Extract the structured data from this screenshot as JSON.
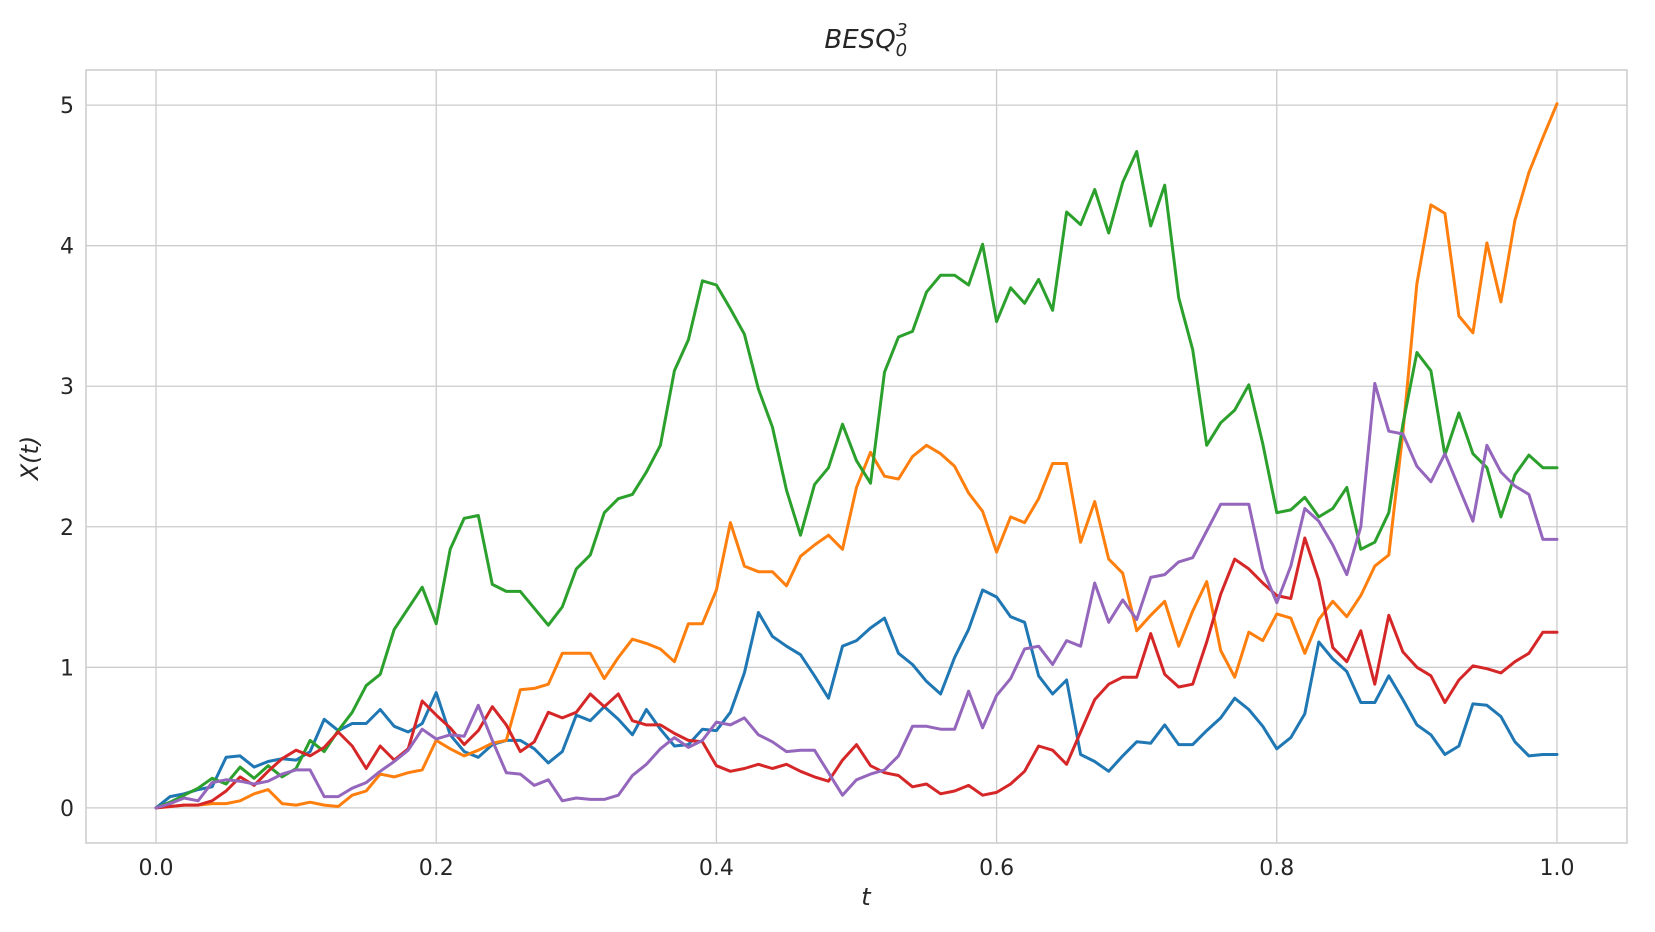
{
  "chart_data": {
    "type": "line",
    "title": "BESQ",
    "title_subscript": "0",
    "title_superscript": "3",
    "xlabel": "t",
    "ylabel": "X(t)",
    "xlim": [
      -0.05,
      1.05
    ],
    "ylim": [
      -0.25,
      5.25
    ],
    "xticks": [
      0.0,
      0.2,
      0.4,
      0.6,
      0.8,
      1.0
    ],
    "xtick_labels": [
      "0.0",
      "0.2",
      "0.4",
      "0.6",
      "0.8",
      "1.0"
    ],
    "yticks": [
      0,
      1,
      2,
      3,
      4,
      5
    ],
    "ytick_labels": [
      "0",
      "1",
      "2",
      "3",
      "4",
      "5"
    ],
    "grid": true,
    "legend": "none",
    "x": [
      0.0,
      0.01,
      0.02,
      0.03,
      0.04,
      0.05,
      0.06,
      0.07,
      0.08,
      0.09,
      0.1,
      0.11,
      0.12,
      0.13,
      0.14,
      0.15,
      0.16,
      0.17,
      0.18,
      0.19,
      0.2,
      0.21,
      0.22,
      0.23,
      0.24,
      0.25,
      0.26,
      0.27,
      0.28,
      0.29,
      0.3,
      0.31,
      0.32,
      0.33,
      0.34,
      0.35,
      0.36,
      0.37,
      0.38,
      0.39,
      0.4,
      0.41,
      0.42,
      0.43,
      0.44,
      0.45,
      0.46,
      0.47,
      0.48,
      0.49,
      0.5,
      0.51,
      0.52,
      0.53,
      0.54,
      0.55,
      0.56,
      0.57,
      0.58,
      0.59,
      0.6,
      0.61,
      0.62,
      0.63,
      0.64,
      0.65,
      0.66,
      0.67,
      0.68,
      0.69,
      0.7,
      0.71,
      0.72,
      0.73,
      0.74,
      0.75,
      0.76,
      0.77,
      0.78,
      0.79,
      0.8,
      0.81,
      0.82,
      0.83,
      0.84,
      0.85,
      0.86,
      0.87,
      0.88,
      0.89,
      0.9,
      0.91,
      0.92,
      0.93,
      0.94,
      0.95,
      0.96,
      0.97,
      0.98,
      0.99,
      1.0
    ],
    "series": [
      {
        "color": "#1f77b4",
        "values": [
          0.0,
          0.08,
          0.1,
          0.13,
          0.15,
          0.36,
          0.37,
          0.29,
          0.33,
          0.35,
          0.34,
          0.4,
          0.63,
          0.55,
          0.6,
          0.6,
          0.7,
          0.58,
          0.54,
          0.6,
          0.82,
          0.52,
          0.4,
          0.36,
          0.45,
          0.48,
          0.48,
          0.42,
          0.32,
          0.4,
          0.66,
          0.62,
          0.72,
          0.63,
          0.52,
          0.7,
          0.56,
          0.44,
          0.45,
          0.56,
          0.55,
          0.68,
          0.96,
          1.39,
          1.22,
          1.15,
          1.09,
          0.94,
          0.78,
          1.15,
          1.19,
          1.28,
          1.35,
          1.1,
          1.02,
          0.9,
          0.81,
          1.07,
          1.27,
          1.55,
          1.5,
          1.36,
          1.32,
          0.94,
          0.81,
          0.91,
          0.38,
          0.33,
          0.26,
          0.37,
          0.47,
          0.46,
          0.59,
          0.45,
          0.45,
          0.55,
          0.64,
          0.78,
          0.7,
          0.58,
          0.42,
          0.5,
          0.67,
          1.18,
          1.06,
          0.97,
          0.75,
          0.75,
          0.94,
          0.77,
          0.59,
          0.52,
          0.38,
          0.44,
          0.74,
          0.73,
          0.65,
          0.47,
          0.37,
          0.38,
          0.38
        ]
      },
      {
        "color": "#ff7f0e",
        "values": [
          0.0,
          0.01,
          0.02,
          0.02,
          0.03,
          0.03,
          0.05,
          0.1,
          0.13,
          0.03,
          0.02,
          0.04,
          0.02,
          0.01,
          0.09,
          0.12,
          0.24,
          0.22,
          0.25,
          0.27,
          0.48,
          0.42,
          0.37,
          0.41,
          0.46,
          0.48,
          0.84,
          0.85,
          0.88,
          1.1,
          1.1,
          1.1,
          0.92,
          1.07,
          1.2,
          1.17,
          1.13,
          1.04,
          1.31,
          1.31,
          1.55,
          2.03,
          1.72,
          1.68,
          1.68,
          1.58,
          1.79,
          1.87,
          1.94,
          1.84,
          2.28,
          2.53,
          2.36,
          2.34,
          2.5,
          2.58,
          2.52,
          2.43,
          2.24,
          2.11,
          1.82,
          2.07,
          2.03,
          2.2,
          2.45,
          2.45,
          1.89,
          2.18,
          1.77,
          1.67,
          1.26,
          1.37,
          1.47,
          1.15,
          1.4,
          1.61,
          1.12,
          0.93,
          1.25,
          1.19,
          1.38,
          1.35,
          1.1,
          1.34,
          1.47,
          1.36,
          1.51,
          1.72,
          1.8,
          2.67,
          3.73,
          4.29,
          4.23,
          3.5,
          3.38,
          4.02,
          3.6,
          4.18,
          4.52,
          4.77,
          5.01
        ]
      },
      {
        "color": "#2ca02c",
        "values": [
          0.0,
          0.04,
          0.09,
          0.14,
          0.21,
          0.17,
          0.29,
          0.21,
          0.3,
          0.22,
          0.28,
          0.48,
          0.4,
          0.55,
          0.68,
          0.87,
          0.95,
          1.27,
          1.42,
          1.57,
          1.31,
          1.84,
          2.06,
          2.08,
          1.59,
          1.54,
          1.54,
          1.42,
          1.3,
          1.43,
          1.7,
          1.8,
          2.1,
          2.2,
          2.23,
          2.39,
          2.58,
          3.11,
          3.33,
          3.75,
          3.72,
          3.55,
          3.37,
          2.98,
          2.71,
          2.26,
          1.94,
          2.3,
          2.42,
          2.73,
          2.47,
          2.31,
          3.1,
          3.35,
          3.39,
          3.67,
          3.79,
          3.79,
          3.72,
          4.01,
          3.46,
          3.7,
          3.59,
          3.76,
          3.54,
          4.24,
          4.15,
          4.4,
          4.09,
          4.45,
          4.67,
          4.14,
          4.43,
          3.63,
          3.26,
          2.58,
          2.74,
          2.83,
          3.01,
          2.59,
          2.1,
          2.12,
          2.21,
          2.07,
          2.13,
          2.28,
          1.84,
          1.89,
          2.1,
          2.73,
          3.24,
          3.11,
          2.51,
          2.81,
          2.52,
          2.42,
          2.07,
          2.37,
          2.51,
          2.42,
          2.42
        ]
      },
      {
        "color": "#d62728",
        "values": [
          0.0,
          0.01,
          0.02,
          0.02,
          0.05,
          0.12,
          0.22,
          0.16,
          0.26,
          0.35,
          0.41,
          0.37,
          0.43,
          0.54,
          0.44,
          0.28,
          0.44,
          0.34,
          0.42,
          0.76,
          0.66,
          0.57,
          0.45,
          0.55,
          0.72,
          0.59,
          0.4,
          0.47,
          0.68,
          0.64,
          0.68,
          0.81,
          0.72,
          0.81,
          0.62,
          0.59,
          0.59,
          0.53,
          0.48,
          0.47,
          0.3,
          0.26,
          0.28,
          0.31,
          0.28,
          0.31,
          0.26,
          0.22,
          0.19,
          0.34,
          0.45,
          0.3,
          0.25,
          0.23,
          0.15,
          0.17,
          0.1,
          0.12,
          0.16,
          0.09,
          0.11,
          0.17,
          0.26,
          0.44,
          0.41,
          0.31,
          0.54,
          0.77,
          0.88,
          0.93,
          0.93,
          1.24,
          0.95,
          0.86,
          0.88,
          1.18,
          1.52,
          1.77,
          1.7,
          1.6,
          1.51,
          1.49,
          1.92,
          1.62,
          1.14,
          1.04,
          1.26,
          0.88,
          1.37,
          1.11,
          1.0,
          0.94,
          0.75,
          0.91,
          1.01,
          0.99,
          0.96,
          1.04,
          1.1,
          1.25,
          1.25
        ]
      },
      {
        "color": "#9467bd",
        "values": [
          0.0,
          0.03,
          0.07,
          0.05,
          0.18,
          0.2,
          0.19,
          0.17,
          0.19,
          0.24,
          0.27,
          0.27,
          0.08,
          0.08,
          0.14,
          0.18,
          0.26,
          0.33,
          0.41,
          0.56,
          0.49,
          0.52,
          0.51,
          0.73,
          0.48,
          0.25,
          0.24,
          0.16,
          0.2,
          0.05,
          0.07,
          0.06,
          0.06,
          0.09,
          0.23,
          0.31,
          0.42,
          0.5,
          0.43,
          0.48,
          0.61,
          0.59,
          0.64,
          0.52,
          0.47,
          0.4,
          0.41,
          0.41,
          0.25,
          0.09,
          0.2,
          0.24,
          0.27,
          0.37,
          0.58,
          0.58,
          0.56,
          0.56,
          0.83,
          0.57,
          0.8,
          0.92,
          1.13,
          1.15,
          1.02,
          1.19,
          1.15,
          1.6,
          1.32,
          1.48,
          1.34,
          1.64,
          1.66,
          1.75,
          1.78,
          1.97,
          2.16,
          2.16,
          2.16,
          1.7,
          1.46,
          1.72,
          2.13,
          2.04,
          1.87,
          1.66,
          2.0,
          3.02,
          2.68,
          2.66,
          2.43,
          2.32,
          2.52,
          2.28,
          2.04,
          2.58,
          2.39,
          2.29,
          2.23,
          1.91,
          1.91
        ]
      }
    ]
  }
}
